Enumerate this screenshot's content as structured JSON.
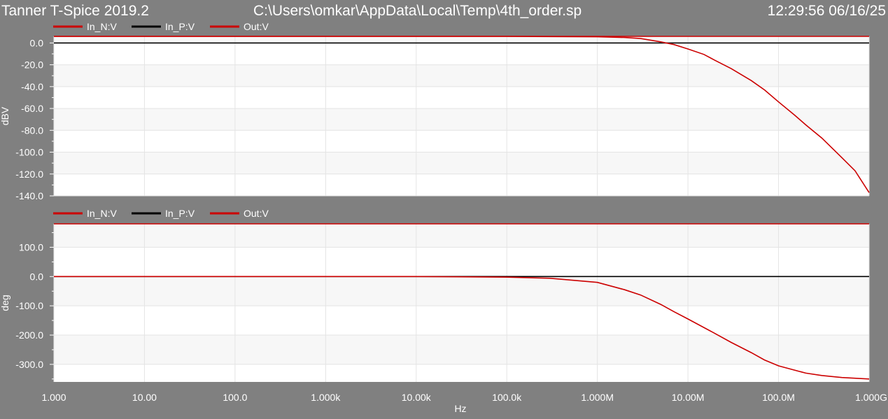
{
  "header": {
    "app_title": "Tanner T-Spice 2019.2",
    "file_path": "C:\\Users\\omkar\\AppData\\Local\\Temp\\4th_order.sp",
    "timestamp": "12:29:56 06/16/25"
  },
  "colors": {
    "background": "#808080",
    "plot_background": "#ffffff",
    "plot_band": "#f7f7f7",
    "grid": "#e4e4e4",
    "trace_red": "#cc0000",
    "trace_black": "#000000",
    "text": "#ffffff"
  },
  "chart_data": [
    {
      "type": "line",
      "xscale": "log",
      "xlim": [
        1,
        1000000000
      ],
      "ylim": [
        -140,
        6
      ],
      "ylabel": "dBV",
      "y_ticks": [
        {
          "value": 0,
          "label": "0.0"
        },
        {
          "value": -20,
          "label": "-20.0"
        },
        {
          "value": -40,
          "label": "-40.0"
        },
        {
          "value": -60,
          "label": "-60.0"
        },
        {
          "value": -80,
          "label": "-80.0"
        },
        {
          "value": -100,
          "label": "-100.0"
        },
        {
          "value": -120,
          "label": "-120.0"
        },
        {
          "value": -140,
          "label": "-140.0"
        }
      ],
      "legend": [
        {
          "name": "In_N:V",
          "color": "#cc0000"
        },
        {
          "name": "In_P:V",
          "color": "#000000"
        },
        {
          "name": "Out:V",
          "color": "#cc0000"
        }
      ],
      "series": [
        {
          "name": "In_N:V",
          "color": "#cc0000",
          "x": [
            1,
            1000000000
          ],
          "y": [
            6,
            6
          ]
        },
        {
          "name": "In_P:V",
          "color": "#000000",
          "x": [
            1,
            1000000000
          ],
          "y": [
            0,
            0
          ]
        },
        {
          "name": "Out:V",
          "color": "#cc0000",
          "x": [
            1,
            10,
            100,
            1000,
            10000,
            100000,
            1000000,
            2000000,
            3000000,
            5000000,
            7000000,
            10000000,
            15000000,
            20000000,
            30000000,
            50000000,
            70000000,
            100000000,
            150000000,
            200000000,
            300000000,
            500000000,
            700000000,
            1000000000
          ],
          "y": [
            6,
            6,
            6,
            6,
            6,
            6,
            5.6,
            5,
            4,
            1,
            -1.5,
            -5.5,
            -10.5,
            -16,
            -23.5,
            -34.5,
            -43,
            -54,
            -66,
            -75,
            -87,
            -105,
            -117,
            -137
          ]
        }
      ]
    },
    {
      "type": "line",
      "xscale": "log",
      "xlim": [
        1,
        1000000000
      ],
      "ylim": [
        -360,
        180
      ],
      "ylabel": "deg",
      "xlabel": "Hz",
      "y_ticks": [
        {
          "value": 100,
          "label": "100.0"
        },
        {
          "value": 0,
          "label": "0.0"
        },
        {
          "value": -100,
          "label": "-100.0"
        },
        {
          "value": -200,
          "label": "-200.0"
        },
        {
          "value": -300,
          "label": "-300.0"
        }
      ],
      "x_ticks": [
        {
          "value": 1,
          "label": "1.000"
        },
        {
          "value": 10,
          "label": "10.00"
        },
        {
          "value": 100,
          "label": "100.0"
        },
        {
          "value": 1000,
          "label": "1.000k"
        },
        {
          "value": 10000,
          "label": "10.00k"
        },
        {
          "value": 100000,
          "label": "100.0k"
        },
        {
          "value": 1000000,
          "label": "1.000M"
        },
        {
          "value": 10000000,
          "label": "10.00M"
        },
        {
          "value": 100000000,
          "label": "100.0M"
        },
        {
          "value": 1000000000,
          "label": "1.000G"
        }
      ],
      "legend": [
        {
          "name": "In_N:V",
          "color": "#cc0000"
        },
        {
          "name": "In_P:V",
          "color": "#000000"
        },
        {
          "name": "Out:V",
          "color": "#cc0000"
        }
      ],
      "series": [
        {
          "name": "In_N:V",
          "color": "#cc0000",
          "x": [
            1,
            1000000000
          ],
          "y": [
            180,
            180
          ]
        },
        {
          "name": "In_P:V",
          "color": "#000000",
          "x": [
            1,
            1000000000
          ],
          "y": [
            0,
            0
          ]
        },
        {
          "name": "Out:V",
          "color": "#cc0000",
          "x": [
            1,
            10,
            100,
            1000,
            10000,
            100000,
            300000,
            1000000,
            2000000,
            3000000,
            5000000,
            7000000,
            10000000,
            20000000,
            30000000,
            50000000,
            70000000,
            100000000,
            200000000,
            300000000,
            500000000,
            1000000000
          ],
          "y": [
            0,
            0,
            0,
            0,
            0,
            -2,
            -6,
            -20,
            -45,
            -63,
            -95,
            -120,
            -145,
            -195,
            -225,
            -260,
            -285,
            -305,
            -330,
            -338,
            -345,
            -350
          ]
        }
      ]
    }
  ]
}
